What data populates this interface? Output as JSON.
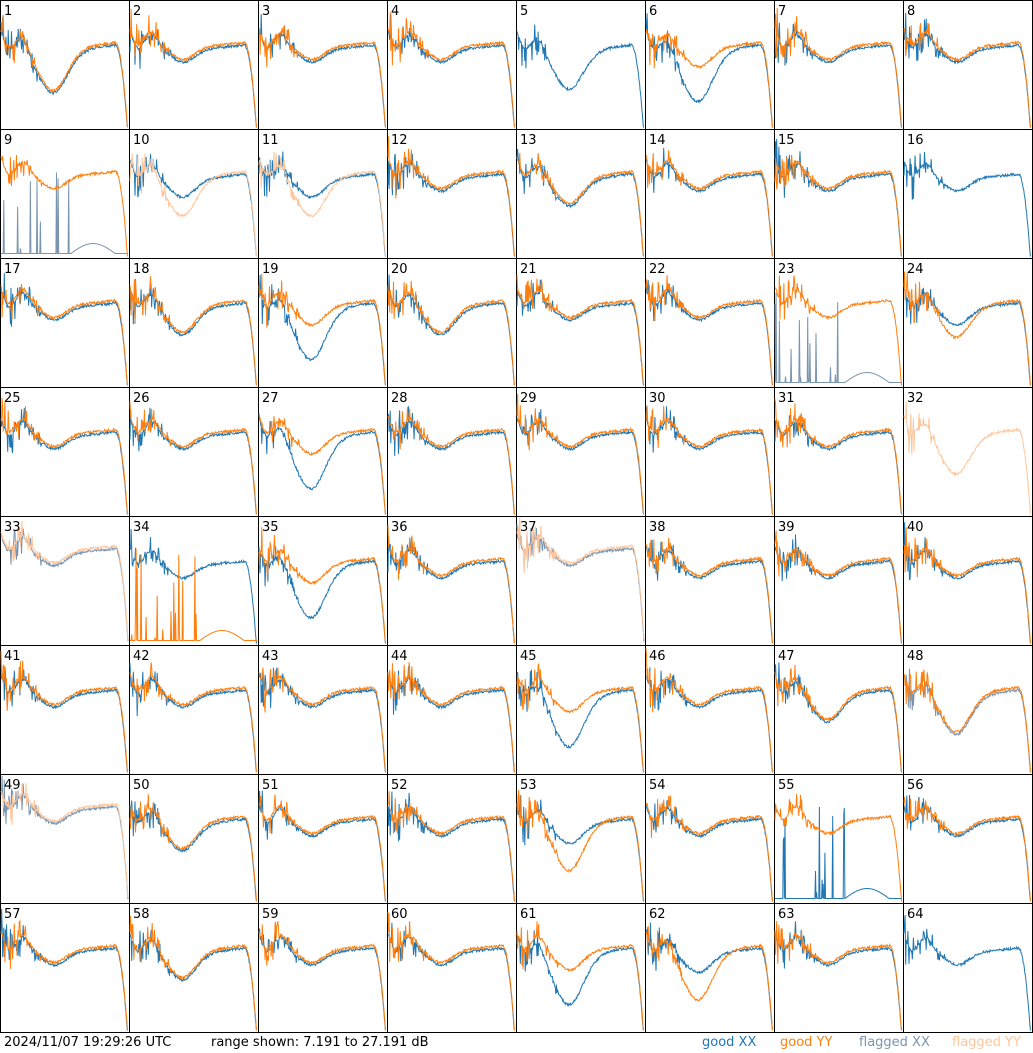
{
  "footer": {
    "timestamp": "2024/11/07 19:29:26 UTC",
    "range_text": "range shown: 7.191 to 27.191 dB"
  },
  "legend": [
    {
      "key": "good_xx",
      "label": "good XX",
      "color": "#1f77b4"
    },
    {
      "key": "good_yy",
      "label": "good YY",
      "color": "#ff7f0e"
    },
    {
      "key": "flagged_xx",
      "label": "flagged XX",
      "color": "#7a95b0"
    },
    {
      "key": "flagged_yy",
      "label": "flagged YY",
      "color": "#ffc59a"
    }
  ],
  "chart_data": {
    "type": "line",
    "ylim": [
      7.191,
      27.191
    ],
    "y_unit": "dB",
    "grid": false,
    "layout": "8x8 small multiples",
    "panels": [
      {
        "id": "1",
        "xx": "good",
        "yy": "good",
        "profile": "dip_high"
      },
      {
        "id": "2",
        "xx": "good",
        "yy": "good",
        "profile": "normal"
      },
      {
        "id": "3",
        "xx": "good",
        "yy": "good",
        "profile": "normal"
      },
      {
        "id": "4",
        "xx": "good",
        "yy": "good",
        "profile": "normal"
      },
      {
        "id": "5",
        "xx": "good",
        "yy": "none",
        "profile": "bowl"
      },
      {
        "id": "6",
        "xx": "good",
        "yy": "good",
        "profile": "deep_xx"
      },
      {
        "id": "7",
        "xx": "good",
        "yy": "good",
        "profile": "normal"
      },
      {
        "id": "8",
        "xx": "good",
        "yy": "good",
        "profile": "normal"
      },
      {
        "id": "9",
        "xx": "flagged",
        "yy": "good",
        "profile": "spikes_xx"
      },
      {
        "id": "10",
        "xx": "good",
        "yy": "flagged",
        "profile": "bowl_yy"
      },
      {
        "id": "11",
        "xx": "good",
        "yy": "flagged",
        "profile": "bowl_yy"
      },
      {
        "id": "12",
        "xx": "good",
        "yy": "good",
        "profile": "normal"
      },
      {
        "id": "13",
        "xx": "good",
        "yy": "good",
        "profile": "dip"
      },
      {
        "id": "14",
        "xx": "good",
        "yy": "good",
        "profile": "normal"
      },
      {
        "id": "15",
        "xx": "good",
        "yy": "good",
        "profile": "normal"
      },
      {
        "id": "16",
        "xx": "good",
        "yy": "none",
        "profile": "normal"
      },
      {
        "id": "17",
        "xx": "good",
        "yy": "good",
        "profile": "normal"
      },
      {
        "id": "18",
        "xx": "good",
        "yy": "good",
        "profile": "dip"
      },
      {
        "id": "19",
        "xx": "good",
        "yy": "good",
        "profile": "deep_xx"
      },
      {
        "id": "20",
        "xx": "good",
        "yy": "good",
        "profile": "dip"
      },
      {
        "id": "21",
        "xx": "good",
        "yy": "good",
        "profile": "normal"
      },
      {
        "id": "22",
        "xx": "good",
        "yy": "good",
        "profile": "normal"
      },
      {
        "id": "23",
        "xx": "flagged",
        "yy": "good",
        "profile": "spikes_xx"
      },
      {
        "id": "24",
        "xx": "good",
        "yy": "good",
        "profile": "dip_yy"
      },
      {
        "id": "25",
        "xx": "good",
        "yy": "good",
        "profile": "normal"
      },
      {
        "id": "26",
        "xx": "good",
        "yy": "good",
        "profile": "normal"
      },
      {
        "id": "27",
        "xx": "good",
        "yy": "good",
        "profile": "deep_xx"
      },
      {
        "id": "28",
        "xx": "good",
        "yy": "good",
        "profile": "normal"
      },
      {
        "id": "29",
        "xx": "good",
        "yy": "good",
        "profile": "normal"
      },
      {
        "id": "30",
        "xx": "good",
        "yy": "good",
        "profile": "normal"
      },
      {
        "id": "31",
        "xx": "good",
        "yy": "good",
        "profile": "normal"
      },
      {
        "id": "32",
        "xx": "none",
        "yy": "flagged",
        "profile": "bowl"
      },
      {
        "id": "33",
        "xx": "flagged",
        "yy": "flagged",
        "profile": "high"
      },
      {
        "id": "34",
        "xx": "good",
        "yy": "good",
        "profile": "spikes_yy"
      },
      {
        "id": "35",
        "xx": "good",
        "yy": "good",
        "profile": "deep_xx"
      },
      {
        "id": "36",
        "xx": "good",
        "yy": "good",
        "profile": "normal"
      },
      {
        "id": "37",
        "xx": "flagged",
        "yy": "flagged",
        "profile": "high"
      },
      {
        "id": "38",
        "xx": "good",
        "yy": "good",
        "profile": "normal"
      },
      {
        "id": "39",
        "xx": "good",
        "yy": "good",
        "profile": "normal"
      },
      {
        "id": "40",
        "xx": "good",
        "yy": "good",
        "profile": "normal"
      },
      {
        "id": "41",
        "xx": "good",
        "yy": "good",
        "profile": "normal"
      },
      {
        "id": "42",
        "xx": "good",
        "yy": "good",
        "profile": "normal"
      },
      {
        "id": "43",
        "xx": "good",
        "yy": "good",
        "profile": "normal"
      },
      {
        "id": "44",
        "xx": "good",
        "yy": "good",
        "profile": "normal"
      },
      {
        "id": "45",
        "xx": "good",
        "yy": "good",
        "profile": "deep_xx"
      },
      {
        "id": "46",
        "xx": "good",
        "yy": "good",
        "profile": "normal"
      },
      {
        "id": "47",
        "xx": "good",
        "yy": "good",
        "profile": "dip"
      },
      {
        "id": "48",
        "xx": "flagged",
        "yy": "good",
        "profile": "bowl"
      },
      {
        "id": "49",
        "xx": "flagged",
        "yy": "flagged",
        "profile": "high"
      },
      {
        "id": "50",
        "xx": "good",
        "yy": "good",
        "profile": "dip"
      },
      {
        "id": "51",
        "xx": "good",
        "yy": "good",
        "profile": "normal"
      },
      {
        "id": "52",
        "xx": "good",
        "yy": "good",
        "profile": "normal"
      },
      {
        "id": "53",
        "xx": "good",
        "yy": "good",
        "profile": "deep_yy"
      },
      {
        "id": "54",
        "xx": "good",
        "yy": "good",
        "profile": "normal"
      },
      {
        "id": "55",
        "xx": "good",
        "yy": "good",
        "profile": "spikes_xx"
      },
      {
        "id": "56",
        "xx": "good",
        "yy": "good",
        "profile": "normal"
      },
      {
        "id": "57",
        "xx": "good",
        "yy": "good",
        "profile": "normal"
      },
      {
        "id": "58",
        "xx": "good",
        "yy": "good",
        "profile": "dip"
      },
      {
        "id": "59",
        "xx": "good",
        "yy": "good",
        "profile": "normal"
      },
      {
        "id": "60",
        "xx": "good",
        "yy": "good",
        "profile": "normal"
      },
      {
        "id": "61",
        "xx": "good",
        "yy": "good",
        "profile": "deep_xx"
      },
      {
        "id": "62",
        "xx": "good",
        "yy": "good",
        "profile": "deep_yy"
      },
      {
        "id": "63",
        "xx": "good",
        "yy": "good",
        "profile": "normal"
      },
      {
        "id": "64",
        "xx": "good",
        "yy": "none",
        "profile": "normal"
      }
    ]
  }
}
